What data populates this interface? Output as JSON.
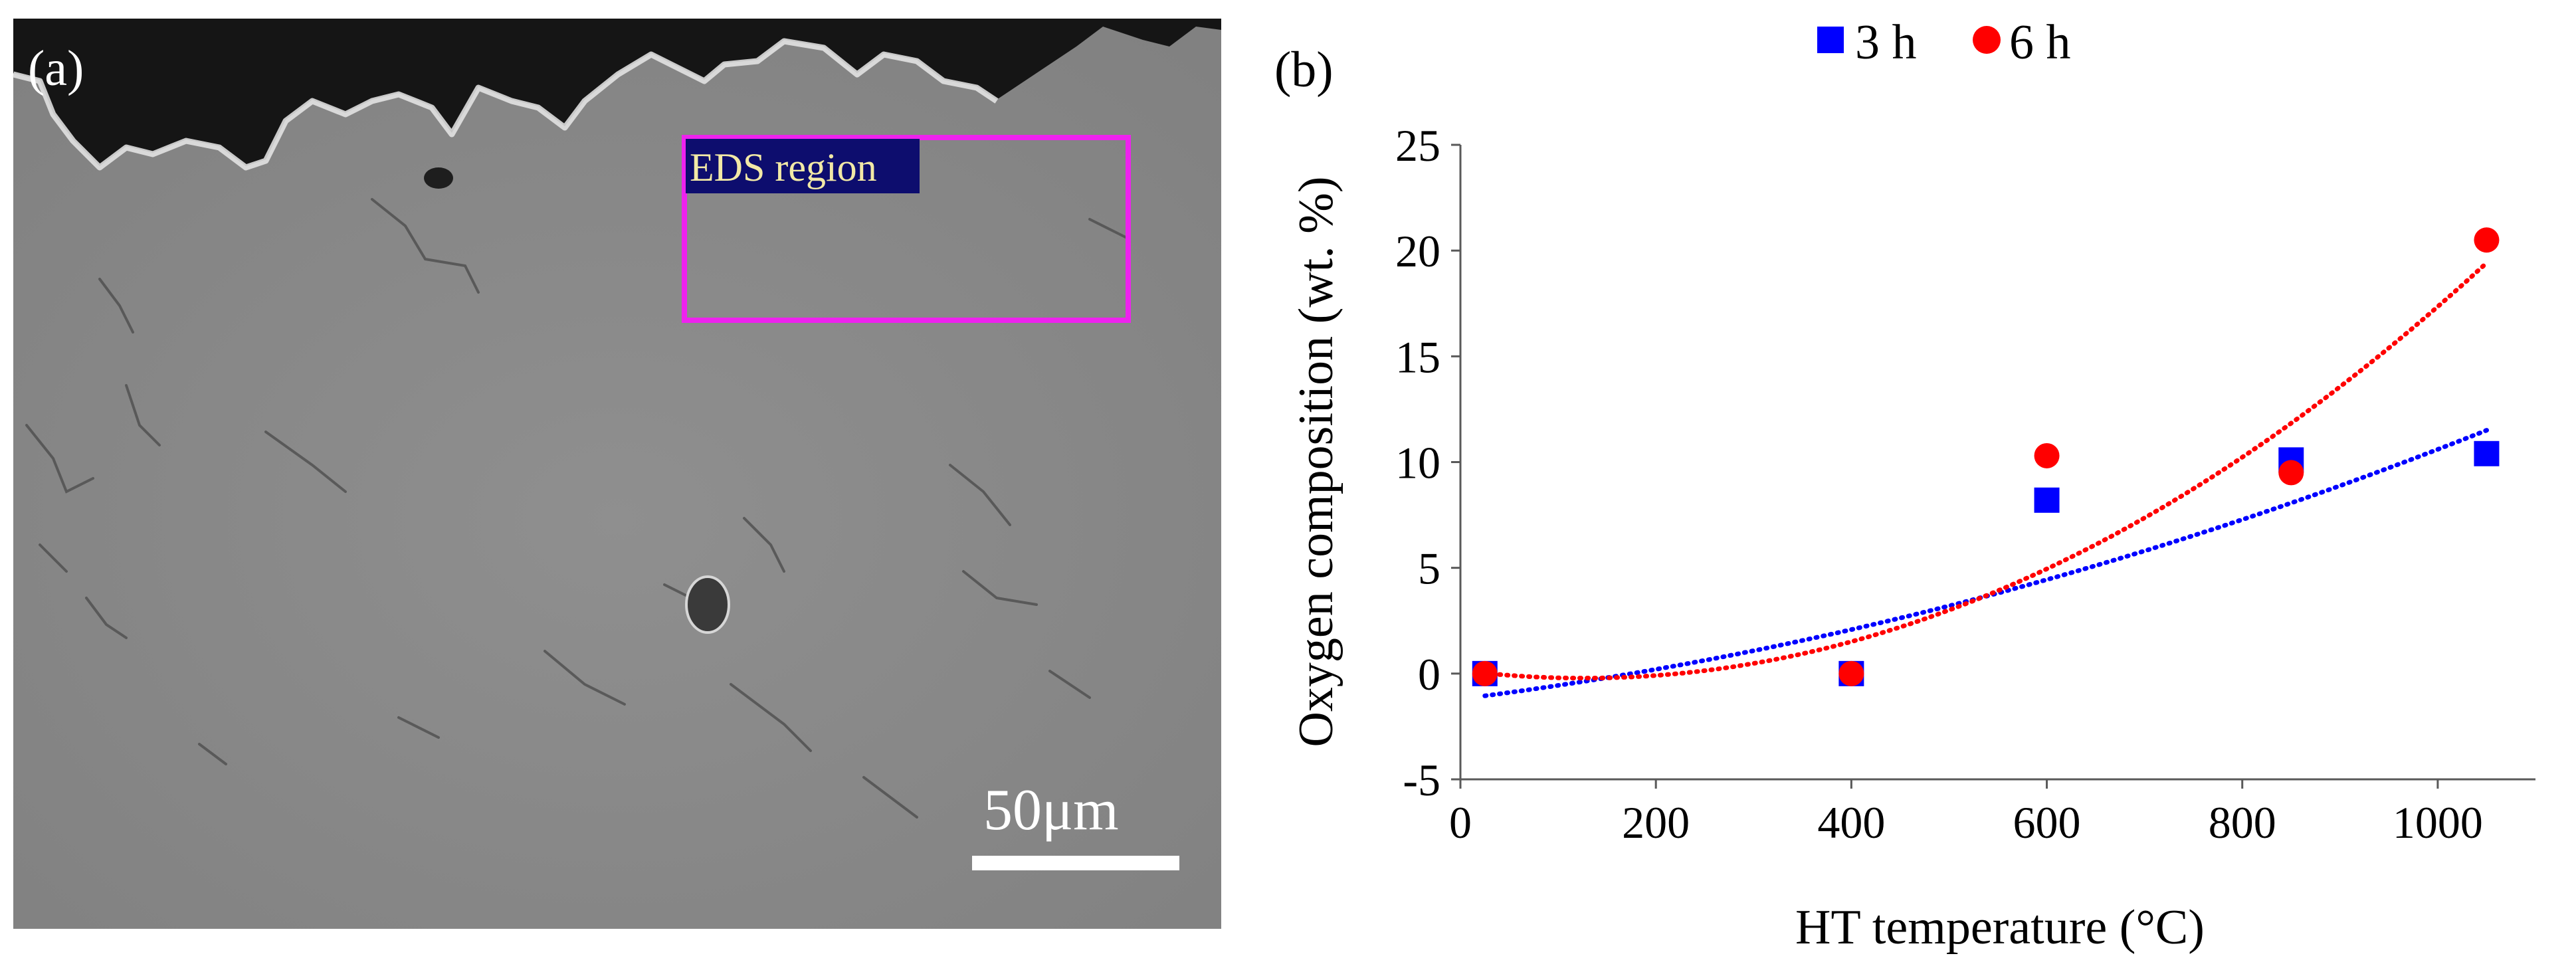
{
  "panel_a": {
    "label": "(a)",
    "eds_label": "EDS region",
    "scale_bar_label": "50μm",
    "colors": {
      "eds_box": "#ee22ee",
      "eds_label_bg": "#0d0d6e",
      "eds_label_text": "#f2e9a6",
      "scale_bar": "#ffffff",
      "background": "#8a8a8a"
    }
  },
  "panel_b": {
    "label": "(b)"
  },
  "chart_data": {
    "type": "scatter",
    "title": "",
    "xlabel": "HT temperature (°C)",
    "ylabel": "Oxygen composition (wt. %)",
    "xlim": [
      0,
      1100
    ],
    "ylim": [
      -5,
      25
    ],
    "x_ticks": [
      0,
      200,
      400,
      600,
      800,
      1000
    ],
    "y_ticks": [
      -5,
      0,
      5,
      10,
      15,
      20,
      25
    ],
    "x_tick_labels": [
      "0",
      "200",
      "400",
      "600",
      "800",
      "1000"
    ],
    "y_tick_labels": [
      "-5",
      "0",
      "5",
      "10",
      "15",
      "20",
      "25"
    ],
    "grid": false,
    "legend_position": "top-center",
    "series": [
      {
        "name": "3 h",
        "marker": "square",
        "color": "#0000ff",
        "x": [
          25,
          400,
          600,
          850,
          1050
        ],
        "y": [
          0,
          0,
          8.2,
          10.1,
          10.4
        ],
        "trendline": {
          "style": "dotted",
          "type": "polynomial",
          "coefficients": [
            -1.2,
            0.0058,
            6e-06
          ]
        }
      },
      {
        "name": "6 h",
        "marker": "circle",
        "color": "#ff0000",
        "x": [
          25,
          400,
          600,
          850,
          1050
        ],
        "y": [
          0,
          0,
          10.3,
          9.5,
          20.5
        ],
        "trendline": {
          "style": "dotted",
          "type": "polynomial",
          "coefficients": [
            0.15,
            -0.0058,
            2.3e-05
          ]
        }
      }
    ]
  }
}
